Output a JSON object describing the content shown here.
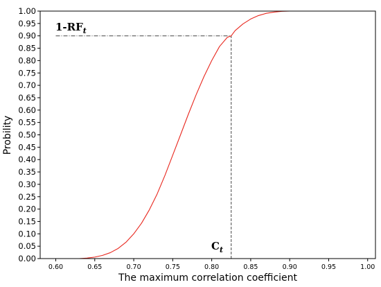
{
  "chart_data": {
    "type": "line",
    "title": "",
    "xlabel": "The maximum correlation coefficient",
    "ylabel": "Probility",
    "xlim": [
      0.58,
      1.01
    ],
    "ylim": [
      0.0,
      1.0
    ],
    "x_ticks": [
      "0.60",
      "0.65",
      "0.70",
      "0.75",
      "0.80",
      "0.85",
      "0.90",
      "0.95",
      "1.00"
    ],
    "y_ticks": [
      "0.00",
      "0.05",
      "0.10",
      "0.15",
      "0.20",
      "0.25",
      "0.30",
      "0.35",
      "0.40",
      "0.45",
      "0.50",
      "0.55",
      "0.60",
      "0.65",
      "0.70",
      "0.75",
      "0.80",
      "0.85",
      "0.90",
      "0.95",
      "1.00"
    ],
    "grid": false,
    "series": [
      {
        "color": "#e8271e",
        "x": [
          0.63,
          0.64,
          0.65,
          0.66,
          0.67,
          0.68,
          0.69,
          0.7,
          0.71,
          0.72,
          0.73,
          0.74,
          0.75,
          0.76,
          0.77,
          0.78,
          0.79,
          0.8,
          0.81,
          0.82,
          0.825,
          0.83,
          0.84,
          0.85,
          0.86,
          0.87,
          0.88,
          0.89,
          0.9,
          0.91,
          0.92,
          1.0
        ],
        "y": [
          0.0,
          0.002,
          0.006,
          0.013,
          0.024,
          0.041,
          0.066,
          0.1,
          0.143,
          0.197,
          0.261,
          0.336,
          0.418,
          0.5,
          0.583,
          0.662,
          0.735,
          0.8,
          0.857,
          0.894,
          0.9,
          0.921,
          0.948,
          0.968,
          0.982,
          0.991,
          0.996,
          0.999,
          1.0,
          1.0,
          1.0,
          1.0
        ]
      }
    ],
    "reference_lines": {
      "color": "#444444",
      "horizontal": {
        "y": 0.9,
        "x_from": 0.6,
        "x_to": 0.825,
        "style": "dash-dot"
      },
      "vertical": {
        "x": 0.825,
        "y_from": 0.0,
        "y_to": 0.9,
        "style": "dashed"
      }
    },
    "annotations": {
      "rf_main": "1-RF",
      "rf_sub": "t",
      "ct_main": "C",
      "ct_sub": "t"
    }
  }
}
